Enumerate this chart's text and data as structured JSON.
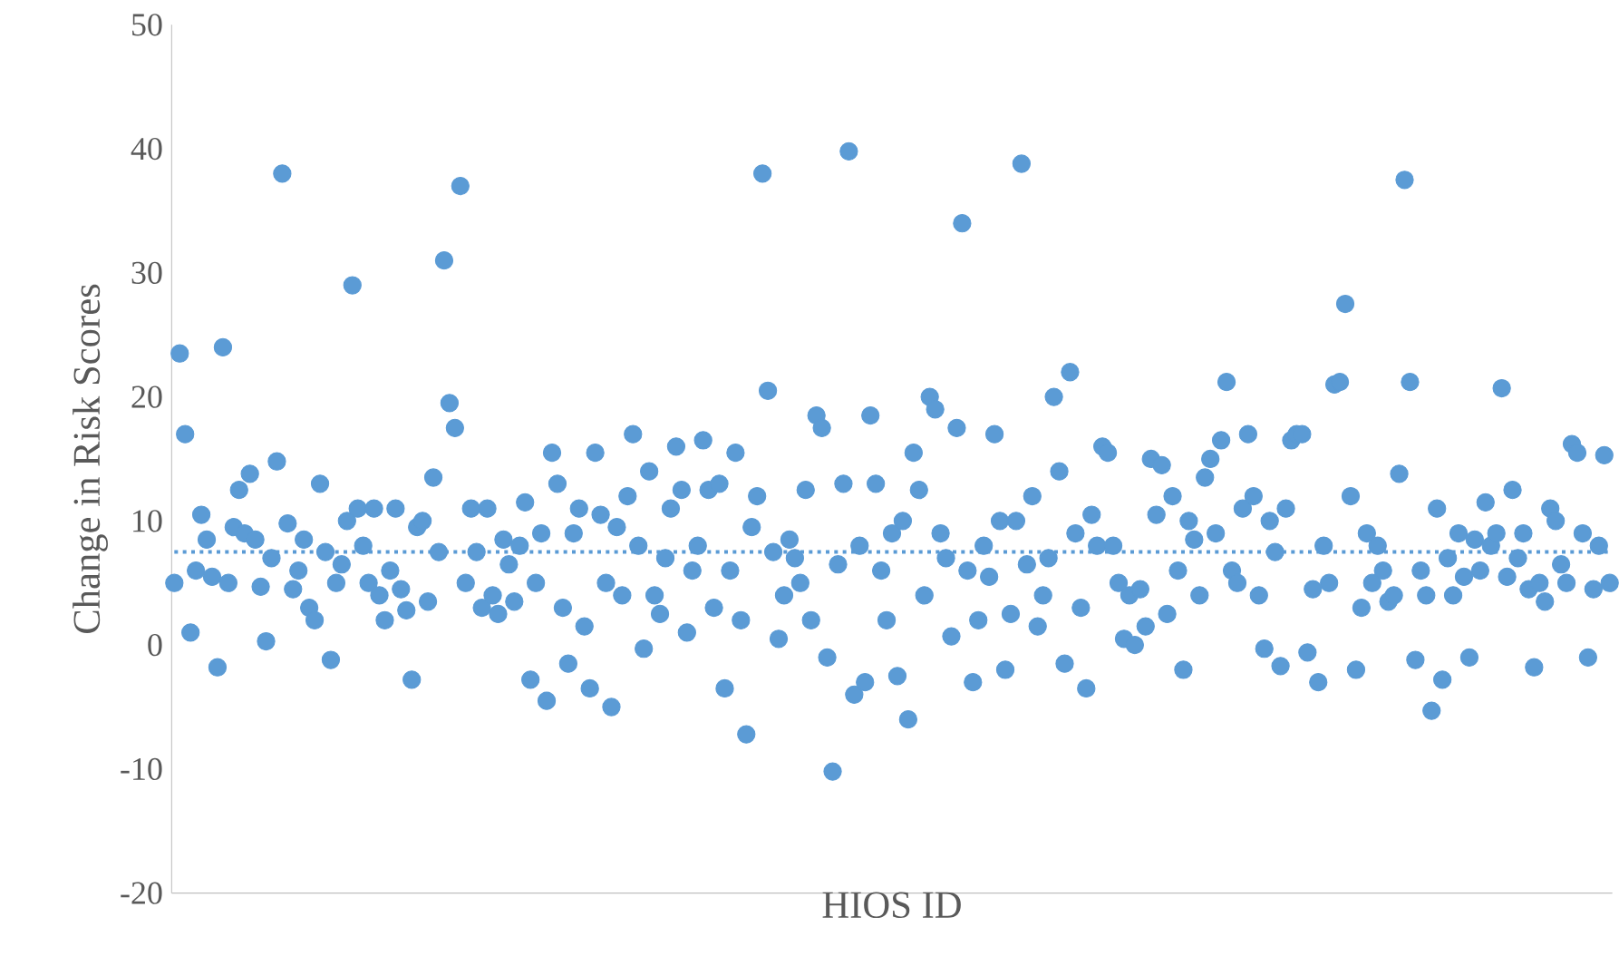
{
  "chart_data": {
    "type": "scatter",
    "xlabel": "HIOS ID",
    "ylabel": "Change in Risk Scores",
    "color": "#5b9bd5",
    "tick_labels": "y",
    "categories": [
      null,
      null,
      null,
      null,
      null,
      null,
      null,
      null,
      null,
      null,
      null,
      null,
      null,
      null,
      null,
      null,
      null,
      null,
      null,
      null,
      null,
      null,
      null,
      null,
      null,
      null,
      null,
      null,
      null,
      null,
      null,
      null,
      null,
      null,
      null,
      null,
      null,
      null,
      null,
      null,
      null,
      null,
      null,
      null,
      null,
      null,
      null,
      null,
      null,
      null,
      null,
      null,
      null,
      null,
      null,
      null,
      null,
      null,
      null,
      null,
      null,
      null,
      null,
      null,
      null,
      null,
      null,
      null,
      null,
      null,
      null,
      null,
      null,
      null,
      null,
      null,
      null,
      null,
      null,
      null,
      null,
      null,
      null,
      null,
      null,
      null,
      null,
      null,
      null,
      null,
      null,
      null,
      null,
      null,
      null,
      null,
      null,
      null,
      null,
      null,
      null,
      null,
      null,
      null,
      null,
      null,
      null,
      null,
      null,
      null,
      null,
      null,
      null,
      null,
      null,
      null,
      null,
      null,
      null,
      null,
      null,
      null,
      null,
      null,
      null,
      null,
      null,
      null,
      null,
      null,
      null,
      null,
      null,
      null,
      null,
      null,
      null,
      null,
      null,
      null,
      null,
      null,
      null,
      null,
      null,
      null,
      null,
      null,
      null,
      null,
      null,
      null,
      null,
      null,
      null,
      null,
      null,
      null,
      null,
      null,
      null,
      null,
      null,
      null,
      null,
      null,
      null,
      null,
      null,
      null,
      null,
      null,
      null,
      null,
      null,
      null,
      null,
      null,
      null,
      null,
      null,
      null,
      null,
      null,
      null,
      null,
      null,
      null,
      null,
      null,
      null,
      null,
      null,
      null,
      null,
      null,
      null,
      null,
      null,
      null,
      null,
      null,
      null,
      null,
      null,
      null,
      null,
      null,
      null,
      null,
      null,
      null,
      null,
      null,
      null,
      null,
      null,
      null,
      null,
      null,
      null,
      null,
      null,
      null,
      null,
      null,
      null,
      null,
      null,
      null,
      null,
      null,
      null,
      null,
      null,
      null,
      null,
      null,
      null,
      null,
      null,
      null,
      null,
      null,
      null,
      null,
      null,
      null,
      null,
      null,
      null,
      null,
      null,
      null,
      null,
      null,
      null,
      null,
      null,
      null,
      null,
      null,
      null,
      null,
      null,
      null,
      null
    ],
    "values": [
      5,
      23.5,
      17,
      1,
      6,
      10.5,
      8.5,
      5.5,
      -1.8,
      24,
      5,
      9.5,
      12.5,
      9,
      13.8,
      8.5,
      4.7,
      0.3,
      7,
      14.8,
      38,
      9.8,
      4.5,
      6,
      8.5,
      3,
      2,
      13,
      7.5,
      -1.2,
      5,
      6.5,
      10,
      29,
      11,
      8,
      5,
      11,
      4,
      2,
      6,
      11,
      4.5,
      2.8,
      -2.8,
      9.5,
      10,
      3.5,
      13.5,
      7.5,
      31,
      19.5,
      17.5,
      37,
      5,
      11,
      7.5,
      3,
      11,
      4,
      2.5,
      8.5,
      6.5,
      3.5,
      8,
      11.5,
      -2.8,
      5,
      9,
      -4.5,
      15.5,
      13,
      3,
      -1.5,
      9,
      11,
      1.5,
      -3.5,
      15.5,
      10.5,
      5,
      -5,
      9.5,
      4,
      12,
      17,
      8,
      -0.3,
      14,
      4,
      2.5,
      7,
      11,
      16,
      12.5,
      1,
      6,
      8,
      16.5,
      12.5,
      3,
      13,
      -3.5,
      6,
      15.5,
      2,
      -7.2,
      9.5,
      12,
      38,
      20.5,
      7.5,
      0.5,
      4,
      8.5,
      7,
      5,
      12.5,
      2,
      18.5,
      17.5,
      -1,
      -10.2,
      6.5,
      13,
      39.8,
      -4,
      8,
      -3,
      18.5,
      13,
      6,
      2,
      9,
      -2.5,
      10,
      -6,
      15.5,
      12.5,
      4,
      20,
      19,
      9,
      7,
      0.7,
      17.5,
      34,
      6,
      -3,
      2,
      8,
      5.5,
      17,
      10,
      -2,
      2.5,
      10,
      38.8,
      6.5,
      12,
      1.5,
      4,
      7,
      20,
      14,
      -1.5,
      22,
      9,
      3,
      -3.5,
      10.5,
      8,
      16,
      15.5,
      8,
      5,
      0.5,
      4,
      0,
      4.5,
      1.5,
      15,
      10.5,
      14.5,
      2.5,
      12,
      6,
      -2,
      10,
      8.5,
      4,
      13.5,
      15,
      9,
      16.5,
      21.2,
      6,
      5,
      11,
      17,
      12,
      4,
      -0.3,
      10,
      7.5,
      -1.7,
      11,
      16.5,
      17,
      17,
      -0.6,
      4.5,
      -3,
      8,
      5,
      21,
      21.2,
      27.5,
      12,
      -2,
      3,
      9,
      5,
      8,
      6,
      3.5,
      4,
      13.8,
      37.5,
      21.2,
      -1.2,
      6,
      4,
      -5.3,
      11,
      -2.8,
      7,
      4,
      9,
      5.5,
      -1,
      8.5,
      6,
      11.5,
      8,
      9,
      20.7,
      5.5,
      12.5,
      7,
      9,
      4.5,
      -1.8,
      5,
      3.5,
      11,
      10,
      6.5,
      5,
      16.2,
      15.5,
      9,
      -1,
      4.5,
      8,
      15.3,
      5
    ],
    "ylim": [
      -20,
      50
    ],
    "yticks": [
      -20,
      -10,
      0,
      10,
      20,
      30,
      40,
      50
    ],
    "ref_lines": [
      {
        "axis": "y",
        "value": 7.5,
        "line_style": "dotted",
        "color": "#5b9bd5"
      }
    ]
  }
}
